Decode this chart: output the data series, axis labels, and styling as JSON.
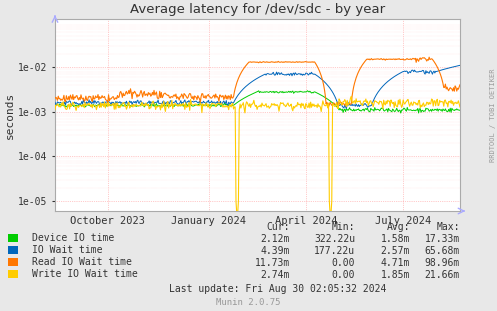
{
  "title": "Average latency for /dev/sdc - by year",
  "ylabel": "seconds",
  "right_label": "RRDTOOL / TOBI OETIKER",
  "bg_color": "#e8e8e8",
  "plot_bg_color": "#ffffff",
  "grid_color": "#ff9999",
  "minor_grid_color": "#ffcccc",
  "axis_color": "#aaaaaa",
  "text_color": "#333333",
  "series": [
    {
      "label": "Device IO time",
      "color": "#00cc00"
    },
    {
      "label": "IO Wait time",
      "color": "#0066bb"
    },
    {
      "label": "Read IO Wait time",
      "color": "#ff7700"
    },
    {
      "label": "Write IO Wait time",
      "color": "#ffcc00"
    }
  ],
  "legend": {
    "headers": [
      "Cur:",
      "Min:",
      "Avg:",
      "Max:"
    ],
    "rows": [
      [
        "Device IO time",
        "2.12m",
        "322.22u",
        "1.58m",
        "17.33m"
      ],
      [
        "IO Wait time",
        "4.39m",
        "177.22u",
        "2.57m",
        "65.68m"
      ],
      [
        "Read IO Wait time",
        "11.73m",
        "0.00",
        "4.71m",
        "98.96m"
      ],
      [
        "Write IO Wait time",
        "2.74m",
        "0.00",
        "1.85m",
        "21.66m"
      ]
    ],
    "last_update": "Last update: Fri Aug 30 02:05:32 2024",
    "munin_version": "Munin 2.0.75"
  },
  "ylim": [
    6e-06,
    0.12
  ],
  "yticks": [
    1e-05,
    0.0001,
    0.001,
    0.01
  ],
  "ytick_labels": [
    "1e-05",
    "1e-04",
    "1e-03",
    "1e-02"
  ],
  "xtick_labels": [
    "October 2023",
    "January 2024",
    "April 2024",
    "July 2024"
  ],
  "xtick_positions": [
    0.13,
    0.38,
    0.62,
    0.86
  ]
}
